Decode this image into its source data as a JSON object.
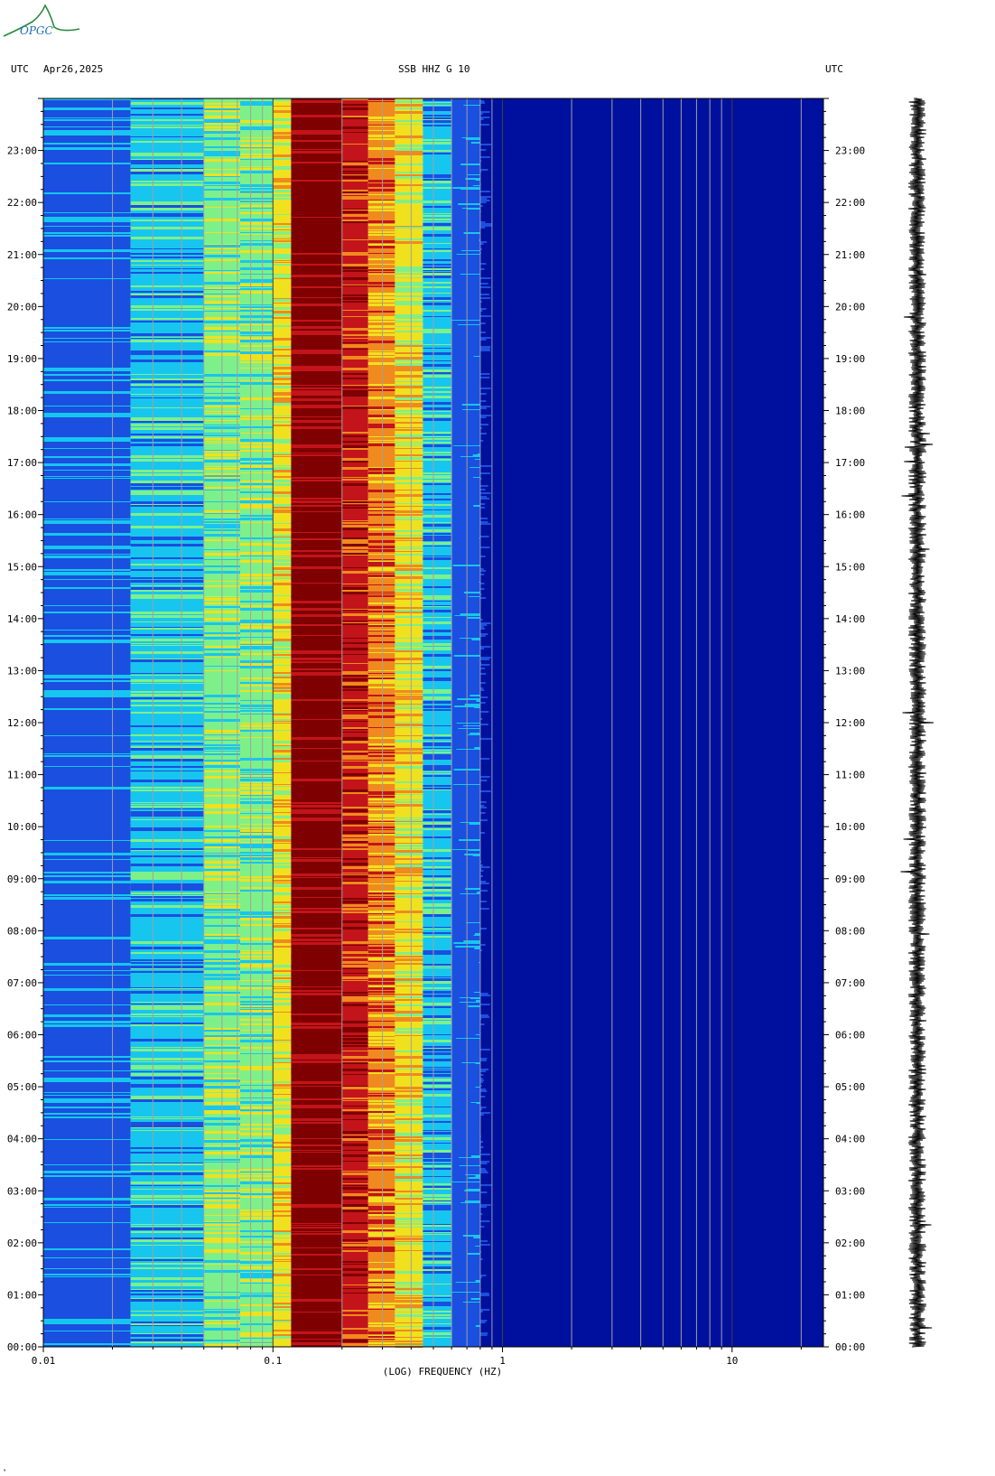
{
  "header": {
    "left_tz": "UTC",
    "date": "Apr26,2025",
    "channel": "SSB HHZ G 10",
    "right_tz": "UTC"
  },
  "logo": {
    "text": "OPGC"
  },
  "footer": {
    "mark": "ᵃ"
  },
  "colors": {
    "low": "#1a4fe0",
    "cyan": "#17c6ef",
    "green": "#7ef08a",
    "yellow": "#f0e11e",
    "orange": "#f08a1e",
    "red": "#c2141a",
    "darkred": "#7f0000",
    "deepblue": "#00109e"
  },
  "chart_data": {
    "type": "heatmap",
    "xlabel": "(LOG) FREQUENCY (HZ)",
    "x_scale": "log",
    "xlim": [
      0.01,
      25
    ],
    "x_ticks": [
      {
        "value": 0.01,
        "label": "0.01"
      },
      {
        "value": 0.1,
        "label": "0.1"
      },
      {
        "value": 1,
        "label": "1"
      },
      {
        "value": 10,
        "label": "10"
      }
    ],
    "ylim_hours": [
      0,
      24
    ],
    "y_ticks": [
      "00:00",
      "01:00",
      "02:00",
      "03:00",
      "04:00",
      "05:00",
      "06:00",
      "07:00",
      "08:00",
      "09:00",
      "10:00",
      "11:00",
      "12:00",
      "13:00",
      "14:00",
      "15:00",
      "16:00",
      "17:00",
      "18:00",
      "19:00",
      "20:00",
      "21:00",
      "22:00",
      "23:00"
    ],
    "frequency_bands": [
      {
        "from": 0.01,
        "to": 0.024,
        "level": "low"
      },
      {
        "from": 0.024,
        "to": 0.05,
        "level": "cyan"
      },
      {
        "from": 0.05,
        "to": 0.072,
        "level": "green"
      },
      {
        "from": 0.072,
        "to": 0.1,
        "level": "green"
      },
      {
        "from": 0.1,
        "to": 0.12,
        "level": "yellow"
      },
      {
        "from": 0.12,
        "to": 0.2,
        "level": "darkred"
      },
      {
        "from": 0.2,
        "to": 0.26,
        "level": "red"
      },
      {
        "from": 0.26,
        "to": 0.34,
        "level": "orange"
      },
      {
        "from": 0.34,
        "to": 0.45,
        "level": "yellow"
      },
      {
        "from": 0.45,
        "to": 0.6,
        "level": "cyan"
      },
      {
        "from": 0.6,
        "to": 0.8,
        "level": "low"
      },
      {
        "from": 0.8,
        "to": 25,
        "level": "deepblue"
      }
    ]
  }
}
